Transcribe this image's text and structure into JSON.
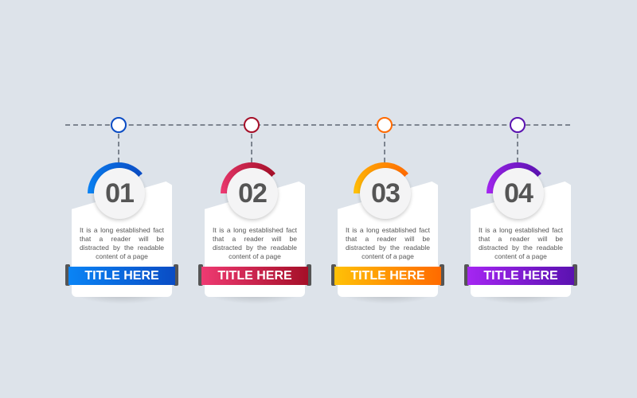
{
  "steps": [
    {
      "number": "01",
      "text": "It is a long established fact that a reader will be distracted by the readable content of a page",
      "title": "TITLE HERE",
      "color_start": "#0a84f5",
      "color_end": "#0a4cc4"
    },
    {
      "number": "02",
      "text": "It is a long established fact that a reader will be distracted by the readable content of a page",
      "title": "TITLE HERE",
      "color_start": "#ee3a72",
      "color_end": "#a50f28"
    },
    {
      "number": "03",
      "text": "It is a long established fact that a reader will be distracted by the readable content of a page",
      "title": "TITLE HERE",
      "color_start": "#ffc107",
      "color_end": "#ff6a00"
    },
    {
      "number": "04",
      "text": "It is a long established fact that a reader will be distracted by the readable content of a page",
      "title": "TITLE HERE",
      "color_start": "#a526f2",
      "color_end": "#5a12b0"
    }
  ]
}
